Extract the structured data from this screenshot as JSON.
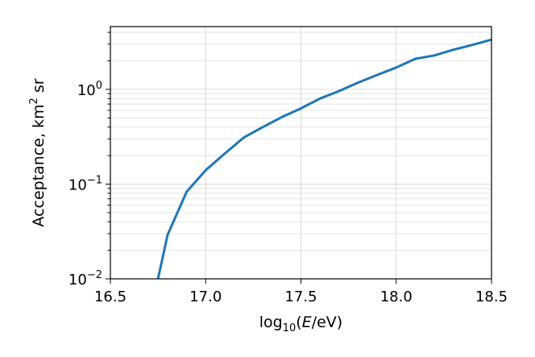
{
  "chart_data": {
    "type": "line",
    "title": "",
    "xlabel": "log10(E/eV)",
    "xlabel_parts": {
      "base": "log",
      "sub": "10",
      "open": "(",
      "var": "E",
      "rest": "/eV)"
    },
    "ylabel": "Acceptance, km² sr",
    "ylabel_parts": {
      "main": "Acceptance, km",
      "sup": "2",
      "unit": " sr"
    },
    "xlim": [
      16.5,
      18.5
    ],
    "ylim": [
      0.01,
      4.6
    ],
    "yscale": "log",
    "grid": true,
    "legend": "none",
    "x_ticks": [
      "16.5",
      "17.0",
      "17.5",
      "18.0",
      "18.5"
    ],
    "y_ticks": [
      {
        "value": 0.01,
        "base": "10",
        "exp": "−2"
      },
      {
        "value": 0.1,
        "base": "10",
        "exp": "−1"
      },
      {
        "value": 1,
        "base": "10",
        "exp": "0"
      }
    ],
    "series": [
      {
        "color": "#1f77b4",
        "x": [
          16.75,
          16.8,
          16.9,
          17.0,
          17.1,
          17.2,
          17.3,
          17.4,
          17.5,
          17.6,
          17.7,
          17.8,
          17.9,
          18.0,
          18.1,
          18.2,
          18.3,
          18.4,
          18.5
        ],
        "y": [
          0.01,
          0.029,
          0.083,
          0.14,
          0.21,
          0.31,
          0.4,
          0.51,
          0.63,
          0.8,
          0.96,
          1.18,
          1.42,
          1.7,
          2.1,
          2.28,
          2.62,
          2.95,
          3.35
        ]
      }
    ]
  }
}
